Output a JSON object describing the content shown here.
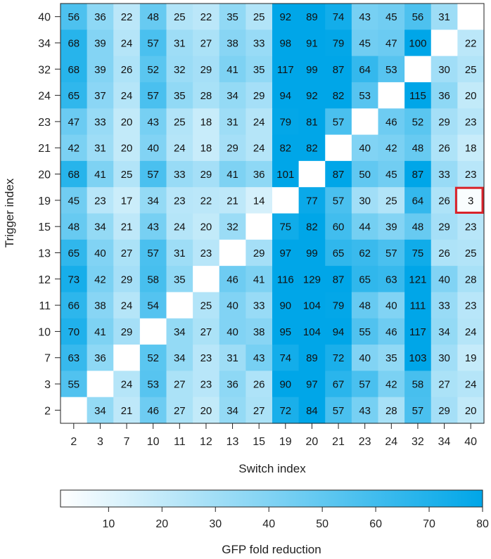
{
  "chart_data": {
    "type": "heatmap",
    "title": "",
    "xlabel": "Switch index",
    "ylabel": "Trigger index",
    "x_categories": [
      "2",
      "3",
      "7",
      "10",
      "11",
      "12",
      "13",
      "15",
      "19",
      "20",
      "21",
      "23",
      "24",
      "32",
      "34",
      "40"
    ],
    "y_categories": [
      "40",
      "34",
      "32",
      "24",
      "23",
      "21",
      "20",
      "19",
      "15",
      "13",
      "12",
      "11",
      "10",
      "7",
      "3",
      "2"
    ],
    "values": [
      [
        56,
        36,
        22,
        48,
        25,
        22,
        35,
        25,
        92,
        89,
        74,
        43,
        45,
        56,
        31,
        null
      ],
      [
        68,
        39,
        24,
        57,
        31,
        27,
        38,
        33,
        98,
        91,
        79,
        45,
        47,
        100,
        null,
        22
      ],
      [
        68,
        39,
        26,
        52,
        32,
        29,
        41,
        35,
        117,
        99,
        87,
        64,
        53,
        null,
        30,
        25
      ],
      [
        65,
        37,
        24,
        57,
        35,
        28,
        34,
        29,
        94,
        92,
        82,
        53,
        null,
        115,
        36,
        20
      ],
      [
        47,
        33,
        20,
        43,
        25,
        18,
        31,
        24,
        79,
        81,
        57,
        null,
        46,
        52,
        29,
        23
      ],
      [
        42,
        31,
        20,
        40,
        24,
        18,
        29,
        24,
        82,
        82,
        null,
        40,
        42,
        48,
        26,
        18
      ],
      [
        68,
        41,
        25,
        57,
        33,
        29,
        41,
        36,
        101,
        null,
        87,
        50,
        45,
        87,
        33,
        23
      ],
      [
        45,
        23,
        17,
        34,
        23,
        22,
        21,
        14,
        null,
        77,
        57,
        30,
        25,
        64,
        26,
        3
      ],
      [
        48,
        34,
        21,
        43,
        24,
        20,
        32,
        null,
        75,
        82,
        60,
        44,
        39,
        48,
        29,
        23
      ],
      [
        65,
        40,
        27,
        57,
        31,
        23,
        null,
        29,
        97,
        99,
        65,
        62,
        57,
        75,
        26,
        25
      ],
      [
        73,
        42,
        29,
        58,
        35,
        null,
        46,
        41,
        116,
        129,
        87,
        65,
        63,
        121,
        40,
        28
      ],
      [
        66,
        38,
        24,
        54,
        null,
        25,
        40,
        33,
        90,
        104,
        79,
        48,
        40,
        111,
        33,
        23
      ],
      [
        70,
        41,
        29,
        null,
        34,
        27,
        40,
        38,
        95,
        104,
        94,
        55,
        46,
        117,
        34,
        24
      ],
      [
        63,
        36,
        null,
        52,
        34,
        23,
        31,
        43,
        74,
        89,
        72,
        40,
        35,
        103,
        30,
        19
      ],
      [
        55,
        null,
        24,
        53,
        27,
        23,
        36,
        26,
        90,
        97,
        67,
        57,
        42,
        58,
        27,
        24
      ],
      [
        null,
        34,
        21,
        46,
        27,
        20,
        34,
        27,
        72,
        84,
        57,
        43,
        28,
        57,
        29,
        20
      ]
    ],
    "highlight": {
      "row": "19",
      "col": "40",
      "color": "#d9232a"
    },
    "colorbar": {
      "label": "GFP fold reduction",
      "min": 1,
      "max": 80,
      "ticks": [
        10,
        20,
        30,
        40,
        50,
        60,
        70,
        80
      ],
      "color_low": "#ffffff",
      "color_high": "#00a6e8"
    },
    "grid": false
  }
}
